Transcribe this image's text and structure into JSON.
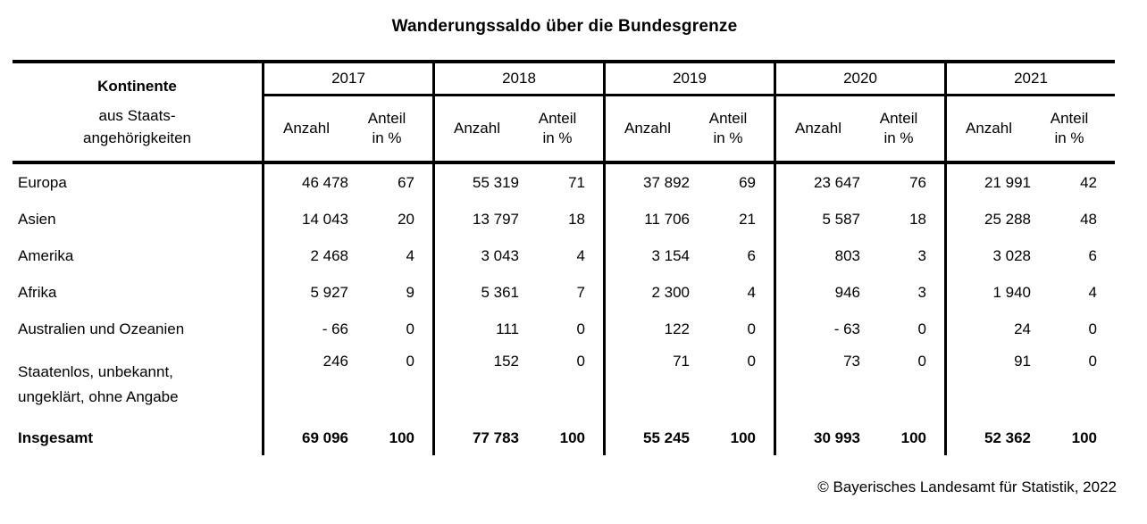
{
  "title": "Wanderungssaldo über die Bundesgrenze",
  "footer": "© Bayerisches Landesamt für Statistik, 2022",
  "colors": {
    "text": "#000000",
    "background": "#ffffff",
    "rule": "#000000"
  },
  "chart_data": {
    "type": "table",
    "title": "Wanderungssaldo über die Bundesgrenze",
    "row_header": {
      "title": "Kontinente",
      "subtitle_lines": [
        "aus Staats-",
        "angehörigkeiten"
      ]
    },
    "years": [
      "2017",
      "2018",
      "2019",
      "2020",
      "2021"
    ],
    "measures": {
      "anzahl": "Anzahl",
      "anteil_lines": [
        "Anteil",
        "in %"
      ]
    },
    "rows": [
      {
        "label_lines": [
          "Europa"
        ],
        "anzahl": [
          "46 478",
          "55 319",
          "37 892",
          "23 647",
          "21 991"
        ],
        "anteil": [
          "67",
          "71",
          "69",
          "76",
          "42"
        ]
      },
      {
        "label_lines": [
          "Asien"
        ],
        "anzahl": [
          "14 043",
          "13 797",
          "11 706",
          "5 587",
          "25 288"
        ],
        "anteil": [
          "20",
          "18",
          "21",
          "18",
          "48"
        ]
      },
      {
        "label_lines": [
          "Amerika"
        ],
        "anzahl": [
          "2 468",
          "3 043",
          "3 154",
          "803",
          "3 028"
        ],
        "anteil": [
          "4",
          "4",
          "6",
          "3",
          "6"
        ]
      },
      {
        "label_lines": [
          "Afrika"
        ],
        "anzahl": [
          "5 927",
          "5 361",
          "2 300",
          "946",
          "1 940"
        ],
        "anteil": [
          "9",
          "7",
          "4",
          "3",
          "4"
        ]
      },
      {
        "label_lines": [
          "Australien und Ozeanien"
        ],
        "anzahl": [
          "- 66",
          "111",
          "122",
          "- 63",
          "24"
        ],
        "anteil": [
          "0",
          "0",
          "0",
          "0",
          "0"
        ]
      },
      {
        "label_lines": [
          "Staatenlos, unbekannt,",
          "ungeklärt, ohne Angabe"
        ],
        "anzahl": [
          "246",
          "152",
          "71",
          "73",
          "91"
        ],
        "anteil": [
          "0",
          "0",
          "0",
          "0",
          "0"
        ]
      }
    ],
    "total_row": {
      "label_lines": [
        "Insgesamt"
      ],
      "anzahl": [
        "69 096",
        "77 783",
        "55 245",
        "30 993",
        "52 362"
      ],
      "anteil": [
        "100",
        "100",
        "100",
        "100",
        "100"
      ]
    }
  }
}
